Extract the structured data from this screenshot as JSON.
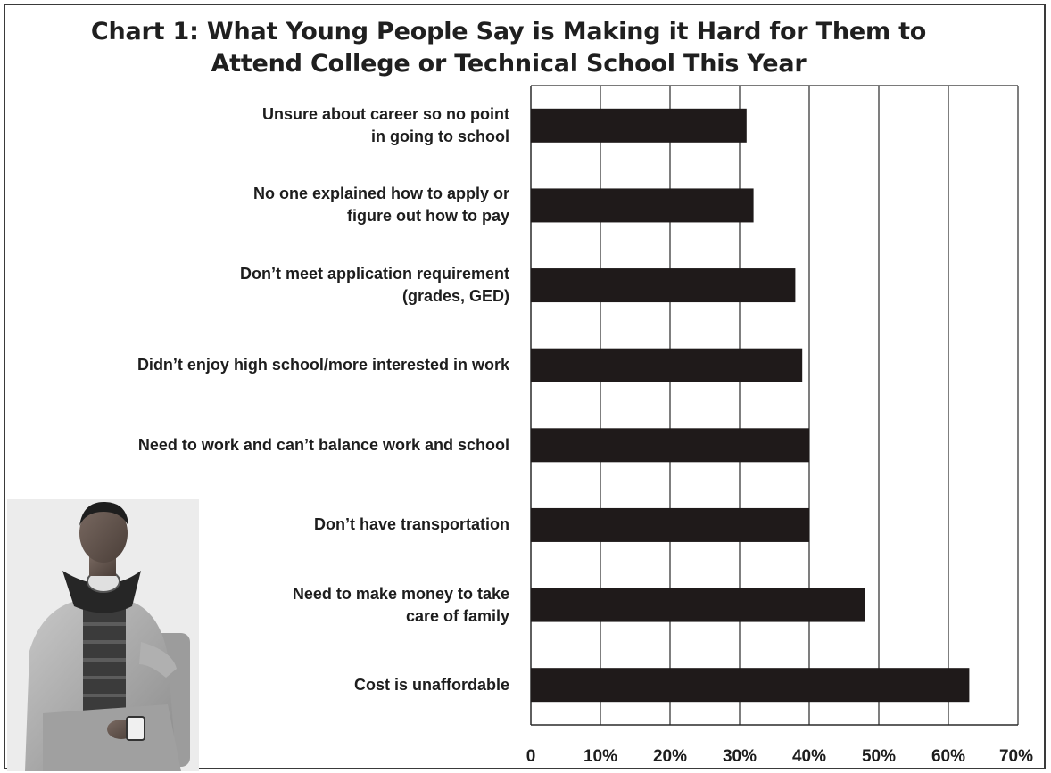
{
  "chart_data": {
    "type": "bar",
    "orientation": "horizontal",
    "title_lines": [
      "Chart 1: What Young People Say is Making it Hard for Them to",
      "Attend College or Technical School This Year"
    ],
    "categories": [
      [
        "Unsure about career so no point",
        "in going to school"
      ],
      [
        "No one explained how to apply or",
        "figure out how to pay"
      ],
      [
        "Don’t meet application requirement",
        "(grades, GED)"
      ],
      [
        "Didn’t enjoy high school/more interested in work"
      ],
      [
        "Need to work and can’t balance work and school"
      ],
      [
        "Don’t have transportation"
      ],
      [
        "Need to make money to take",
        "care of family"
      ],
      [
        "Cost is unaffordable"
      ]
    ],
    "values": [
      31,
      32,
      38,
      39,
      40,
      40,
      48,
      63
    ],
    "xlim": [
      0,
      70
    ],
    "xticks": [
      0,
      10,
      20,
      30,
      40,
      50,
      60,
      70
    ],
    "xtick_labels": [
      "0",
      "10%",
      "20%",
      "30%",
      "40%",
      "50%",
      "60%",
      "70%"
    ],
    "grid": true,
    "bar_color": "#1f1a1a",
    "legend": "none"
  },
  "photo": {
    "description_icon": "young-man-photo"
  }
}
